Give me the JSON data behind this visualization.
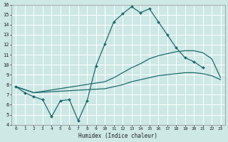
{
  "xlabel": "Humidex (Indice chaleur)",
  "xlim": [
    -0.5,
    23.5
  ],
  "ylim": [
    4,
    16
  ],
  "background_color": "#cde8e5",
  "grid_color": "#ffffff",
  "line_color": "#1a6b6b",
  "line1": {
    "x": [
      0,
      1,
      2,
      3,
      4,
      5,
      6,
      7,
      8,
      9,
      10,
      11,
      12,
      13,
      14,
      15,
      16,
      17,
      18,
      19,
      20,
      21
    ],
    "y": [
      7.8,
      7.2,
      6.8,
      6.5,
      4.8,
      6.4,
      6.5,
      4.4,
      6.4,
      9.9,
      12.1,
      14.3,
      15.1,
      15.8,
      15.2,
      15.6,
      14.3,
      13.0,
      11.7,
      10.7,
      10.3,
      9.7
    ],
    "marker": "D",
    "markersize": 2.0,
    "linewidth": 0.9
  },
  "line2": {
    "x": [
      0,
      2,
      10,
      11,
      12,
      13,
      14,
      15,
      16,
      17,
      18,
      19,
      20,
      21,
      22,
      23
    ],
    "y": [
      7.8,
      7.2,
      8.3,
      8.7,
      9.2,
      9.7,
      10.1,
      10.6,
      10.9,
      11.1,
      11.3,
      11.4,
      11.4,
      11.2,
      10.6,
      8.7
    ],
    "linewidth": 0.9
  },
  "line3": {
    "x": [
      0,
      2,
      10,
      11,
      12,
      13,
      14,
      15,
      16,
      17,
      18,
      19,
      20,
      21,
      22,
      23
    ],
    "y": [
      7.8,
      7.2,
      7.6,
      7.8,
      8.0,
      8.3,
      8.5,
      8.7,
      8.9,
      9.0,
      9.1,
      9.2,
      9.2,
      9.1,
      8.9,
      8.5
    ],
    "linewidth": 0.9
  },
  "xtick_labels": [
    "0",
    "1",
    "2",
    "3",
    "4",
    "5",
    "6",
    "7",
    "8",
    "9",
    "10",
    "11",
    "12",
    "13",
    "14",
    "15",
    "16",
    "17",
    "18",
    "19",
    "20",
    "21",
    "22",
    "23"
  ],
  "ytick_labels": [
    "4",
    "5",
    "6",
    "7",
    "8",
    "9",
    "10",
    "11",
    "12",
    "13",
    "14",
    "15",
    "16"
  ]
}
